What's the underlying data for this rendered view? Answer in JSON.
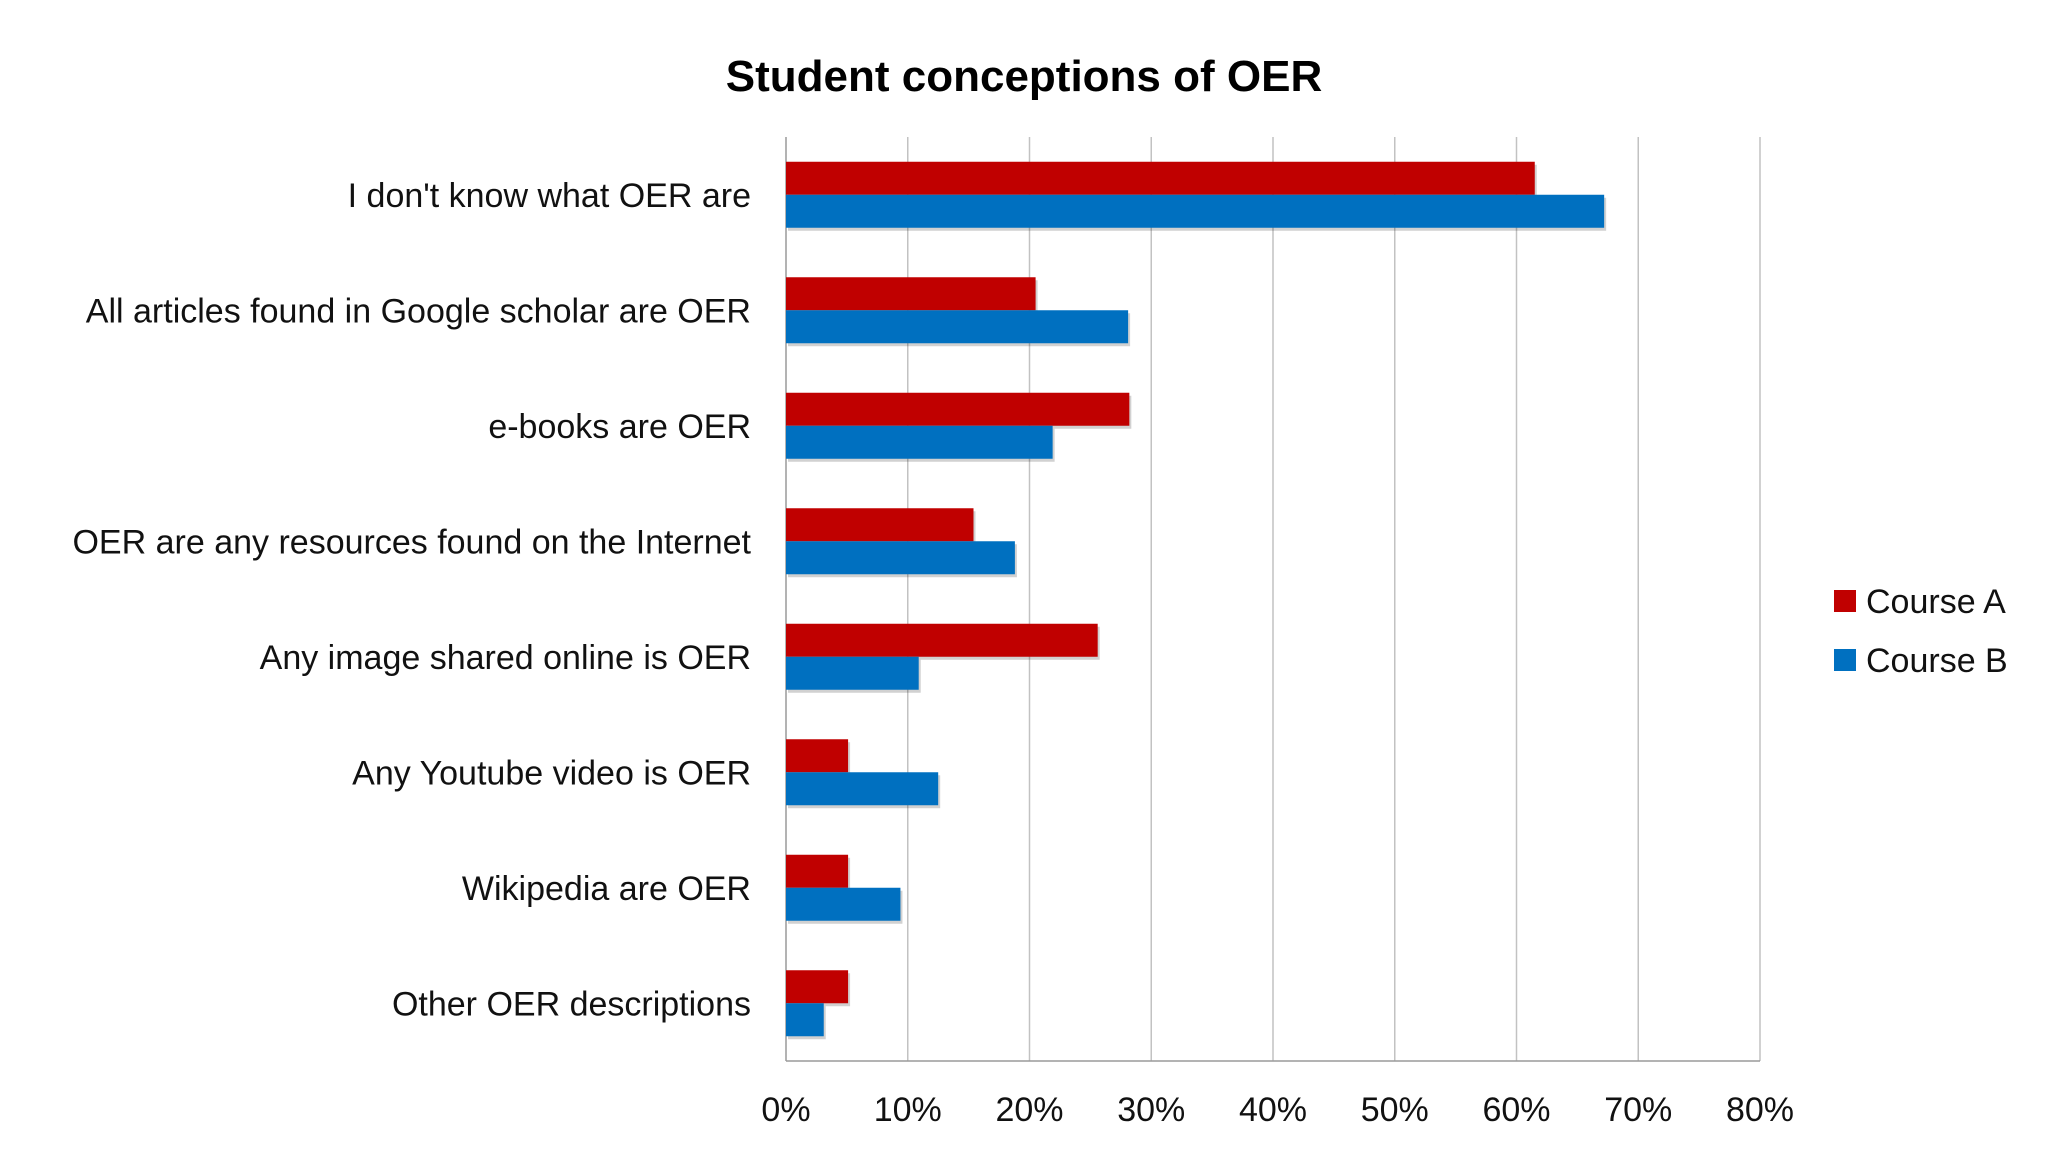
{
  "chart_data": {
    "type": "bar",
    "orientation": "horizontal",
    "title": "Student conceptions of OER",
    "categories": [
      "I don't know what OER are",
      "All articles found in Google scholar are OER",
      "e-books are OER",
      "OER are any resources found on the Internet",
      "Any image shared online is OER",
      "Any Youtube video is OER",
      "Wikipedia are OER",
      "Other OER descriptions"
    ],
    "series": [
      {
        "name": "Course A",
        "color": "#C00000",
        "values": [
          61.5,
          20.5,
          28.2,
          15.4,
          25.6,
          5.1,
          5.1,
          5.1
        ]
      },
      {
        "name": "Course B",
        "color": "#0070C0",
        "values": [
          67.2,
          28.1,
          21.9,
          18.8,
          10.9,
          12.5,
          9.4,
          3.1
        ]
      }
    ],
    "xlim": [
      0,
      80
    ],
    "xticks": [
      "0%",
      "10%",
      "20%",
      "30%",
      "40%",
      "50%",
      "60%",
      "70%",
      "80%"
    ],
    "xlabel": "",
    "ylabel": "",
    "grid": "vertical",
    "legend": "right"
  }
}
